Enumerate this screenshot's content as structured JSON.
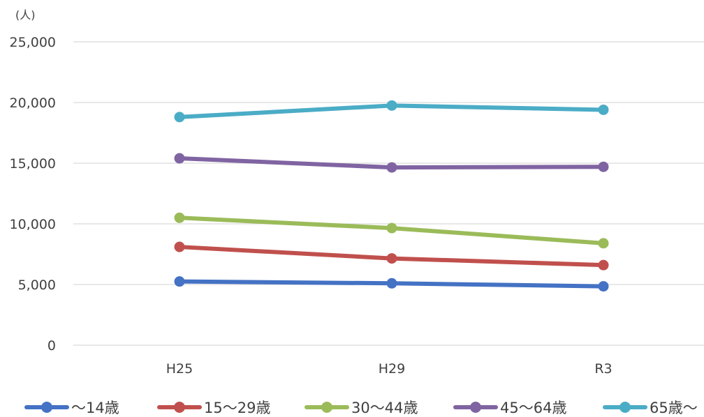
{
  "chart_data": {
    "type": "line",
    "title": "",
    "xlabel": "",
    "ylabel": "(人)",
    "categories": [
      "H25",
      "H29",
      "R3"
    ],
    "ylim": [
      0,
      25000
    ],
    "yticks": [
      0,
      5000,
      10000,
      15000,
      20000,
      25000
    ],
    "ytick_labels": [
      "0",
      "5,000",
      "10,000",
      "15,000",
      "20,000",
      "25,000"
    ],
    "grid": true,
    "legend_position": "bottom",
    "series": [
      {
        "name": "～14歳",
        "color": "#4472c4",
        "values": [
          5250,
          5100,
          4850
        ]
      },
      {
        "name": "15～29歳",
        "color": "#c0504d",
        "values": [
          8100,
          7150,
          6600
        ]
      },
      {
        "name": "30～44歳",
        "color": "#9bbb59",
        "values": [
          10500,
          9650,
          8400
        ]
      },
      {
        "name": "45～64歳",
        "color": "#8064a2",
        "values": [
          15400,
          14650,
          14700
        ]
      },
      {
        "name": "65歳～",
        "color": "#4bacc6",
        "values": [
          18800,
          19750,
          19400
        ]
      }
    ]
  }
}
